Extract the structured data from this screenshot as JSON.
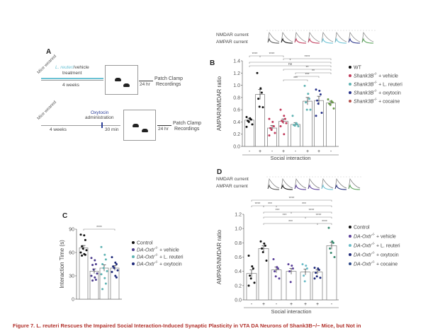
{
  "panelA": {
    "label": "A",
    "row1": {
      "weaned": "Mice weaned",
      "treatment_italic": "L. reuteri",
      "treatment_rest": "/vehicle",
      "treatment2": "treatment",
      "duration": "4 weeks",
      "delay": "24 hr",
      "outcome1": "Patch Clamp",
      "outcome2": "Recordings",
      "accent": "#6cc3d5"
    },
    "row2": {
      "weaned": "Mice weaned",
      "drug": "Oxytocin",
      "drug2": "administration",
      "duration": "4 weeks",
      "wait": "30 min",
      "delay": "24 hr",
      "outcome1": "Patch Clamp",
      "outcome2": "Recordings",
      "accent": "#2b3f9a"
    }
  },
  "panelB": {
    "label": "B",
    "trace_labels": {
      "nmdar": "NMDAR current",
      "ampar": "AMPAR current"
    },
    "trace_colors": [
      "#555555",
      "#111111",
      "#c0395a",
      "#c0395a",
      "#6cc3d5",
      "#6cc3d5",
      "#28338a",
      "#5aa35a"
    ],
    "legend": [
      {
        "main": "WT",
        "sup": "",
        "suffix": "",
        "color": "#111111"
      },
      {
        "main": "Shank3B",
        "sup": "-/-",
        "suffix": " + vehicle",
        "color": "#c0395a"
      },
      {
        "main": "Shank3B",
        "sup": "-/-",
        "suffix": " + L. reuteri",
        "color": "#5fb3b3"
      },
      {
        "main": "Shank3B",
        "sup": "-/-",
        "suffix": " + oxytocin",
        "color": "#28338a"
      },
      {
        "main": "Shank3B",
        "sup": "-/-",
        "suffix": " + cocaine",
        "color": "#b5544f"
      }
    ]
  },
  "panelC": {
    "label": "C",
    "legend": [
      {
        "main": "Control",
        "sup": "",
        "suffix": "",
        "color": "#111111"
      },
      {
        "main": "DA-Oxtr",
        "sup": "-/-",
        "suffix": " + vehicle",
        "color": "#4a3a8c"
      },
      {
        "main": "DA-Oxtr",
        "sup": "-/-",
        "suffix": " + L. reuteri",
        "color": "#5fb3b3"
      },
      {
        "main": "DA-Oxtr",
        "sup": "-/-",
        "suffix": " + oxytocin",
        "color": "#1f2a7a"
      }
    ]
  },
  "panelD": {
    "label": "D",
    "trace_labels": {
      "nmdar": "NMDAR current",
      "ampar": "AMPAR current"
    },
    "trace_colors": [
      "#555555",
      "#111111",
      "#5a3f99",
      "#5a3f99",
      "#6cc3d5",
      "#1f2a7a",
      "#5aa35a"
    ],
    "legend": [
      {
        "main": "Control",
        "sup": "",
        "suffix": "",
        "color": "#111111"
      },
      {
        "main": "DA-Oxtr",
        "sup": "-/-",
        "suffix": " + vehicle",
        "color": "#5a3f99"
      },
      {
        "main": "DA-Oxtr",
        "sup": "-/-",
        "suffix": " + L. reuteri",
        "color": "#6bbcc8"
      },
      {
        "main": "DA-Oxtr",
        "sup": "-/-",
        "suffix": " + oxytocin",
        "color": "#1f2a7a"
      },
      {
        "main": "DA-Oxtr",
        "sup": "-/-",
        "suffix": " + cocaine",
        "color": "#2d4a8a"
      }
    ]
  },
  "caption": "Figure 7. L. reuteri Rescues the Impaired Social Interaction-Induced Synaptic Plasticity in VTA DA Neurons of Shank3B−/− Mice, but Not in",
  "chart_data": [
    {
      "id": "B",
      "type": "bar",
      "ylabel": "AMPAR/NMDAR ratio",
      "xlabel": "Social interaction",
      "ylim": [
        0,
        1.4
      ],
      "yticks": [
        "0.0",
        "0.2",
        "0.4",
        "0.6",
        "0.8",
        "1.0",
        "1.2",
        "1.4"
      ],
      "categories": [
        "-",
        "+",
        "-",
        "+",
        "-",
        "+",
        "+",
        "-"
      ],
      "values": [
        0.43,
        0.85,
        0.3,
        0.41,
        0.36,
        0.74,
        0.75,
        0.71
      ],
      "errors": [
        0.03,
        0.08,
        0.04,
        0.04,
        0.03,
        0.06,
        0.07,
        0.03
      ],
      "colors": [
        "#111111",
        "#111111",
        "#c0395a",
        "#c0395a",
        "#5fb3b3",
        "#5fb3b3",
        "#28338a",
        "#6a9a4a"
      ],
      "points": [
        [
          0.48,
          0.46,
          0.44,
          0.42,
          0.4,
          0.36,
          0.32
        ],
        [
          1.2,
          0.95,
          0.88,
          0.78,
          0.65,
          0.64
        ],
        [
          0.45,
          0.4,
          0.33,
          0.3,
          0.27,
          0.22,
          0.18
        ],
        [
          0.6,
          0.5,
          0.45,
          0.42,
          0.4,
          0.38,
          0.33,
          0.2
        ],
        [
          0.5,
          0.38,
          0.36,
          0.35,
          0.34,
          0.33
        ],
        [
          0.99,
          0.86,
          0.78,
          0.72,
          0.6,
          0.6
        ],
        [
          0.93,
          0.91,
          0.85,
          0.75,
          0.7,
          0.55,
          0.5
        ],
        [
          0.77,
          0.74,
          0.72,
          0.7,
          0.68,
          0.62
        ]
      ],
      "significance": [
        {
          "from": 0,
          "to": 1,
          "label": "****"
        },
        {
          "from": 1,
          "to": 3,
          "label": "****"
        },
        {
          "from": 3,
          "to": 7,
          "label": "****"
        },
        {
          "from": 0,
          "to": 7,
          "label": "*"
        },
        {
          "from": 0,
          "to": 7,
          "label": "ns"
        },
        {
          "from": 3,
          "to": 7,
          "label": "**"
        },
        {
          "from": 4,
          "to": 7,
          "label": "**"
        },
        {
          "from": 4,
          "to": 6,
          "label": "***"
        },
        {
          "from": 3,
          "to": 5,
          "label": "***"
        }
      ]
    },
    {
      "id": "C",
      "type": "bar",
      "ylabel": "Interaction Time (s)",
      "xlabel": "",
      "ylim": [
        0,
        90
      ],
      "yticks": [
        "0",
        "30",
        "60",
        "90"
      ],
      "categories": [
        "",
        "",
        "",
        ""
      ],
      "values": [
        66,
        36,
        40,
        40
      ],
      "errors": [
        3,
        3,
        4,
        3
      ],
      "colors": [
        "#111111",
        "#4a3a8c",
        "#5fb3b3",
        "#1f2a7a"
      ],
      "points": [
        [
          83,
          82,
          76,
          68,
          65,
          63,
          60,
          58,
          57,
          56
        ],
        [
          53,
          50,
          45,
          44,
          38,
          33,
          30,
          28,
          25,
          24
        ],
        [
          67,
          57,
          51,
          45,
          40,
          36,
          32,
          27,
          20,
          13
        ],
        [
          54,
          47,
          45,
          42,
          40,
          37,
          35,
          30,
          28
        ]
      ],
      "significance": [
        {
          "from": 0,
          "to": 3,
          "label": "****"
        }
      ]
    },
    {
      "id": "D",
      "type": "bar",
      "ylabel": "AMPAR/NMDAR ratio",
      "xlabel": "Social interaction",
      "ylim": [
        0,
        1.2
      ],
      "yticks": [
        "0.0",
        "0.2",
        "0.4",
        "0.6",
        "0.8",
        "1.0",
        "1.2"
      ],
      "categories": [
        "-",
        "+",
        "-",
        "+",
        "+",
        "+",
        "-"
      ],
      "values": [
        0.37,
        0.72,
        0.42,
        0.4,
        0.39,
        0.39,
        0.76
      ],
      "errors": [
        0.05,
        0.04,
        0.04,
        0.04,
        0.04,
        0.03,
        0.05
      ],
      "colors": [
        "#111111",
        "#111111",
        "#5a3f99",
        "#5a3f99",
        "#6bbcc8",
        "#1f2a7a",
        "#3a8a70"
      ],
      "points": [
        [
          0.62,
          0.47,
          0.44,
          0.34,
          0.3,
          0.24,
          0.2
        ],
        [
          0.82,
          0.79,
          0.76,
          0.72,
          0.67,
          0.55
        ],
        [
          0.57,
          0.46,
          0.44,
          0.4,
          0.33,
          0.3
        ],
        [
          0.5,
          0.48,
          0.44,
          0.4,
          0.25
        ],
        [
          0.5,
          0.48,
          0.44,
          0.34,
          0.26
        ],
        [
          0.45,
          0.44,
          0.42,
          0.38,
          0.33,
          0.31,
          0.3
        ],
        [
          1.01,
          0.82,
          0.8,
          0.72,
          0.66,
          0.6
        ]
      ],
      "significance": [
        {
          "from": 0,
          "to": 6,
          "label": "****"
        },
        {
          "from": 0,
          "to": 1,
          "label": "****"
        },
        {
          "from": 1,
          "to": 2,
          "label": "***"
        },
        {
          "from": 2,
          "to": 6,
          "label": "***"
        },
        {
          "from": 1,
          "to": 3,
          "label": "***"
        },
        {
          "from": 3,
          "to": 6,
          "label": "****"
        },
        {
          "from": 1,
          "to": 4,
          "label": "***"
        },
        {
          "from": 4,
          "to": 6,
          "label": "****"
        },
        {
          "from": 1,
          "to": 5,
          "label": "***"
        },
        {
          "from": 5,
          "to": 6,
          "label": "****"
        }
      ]
    }
  ]
}
